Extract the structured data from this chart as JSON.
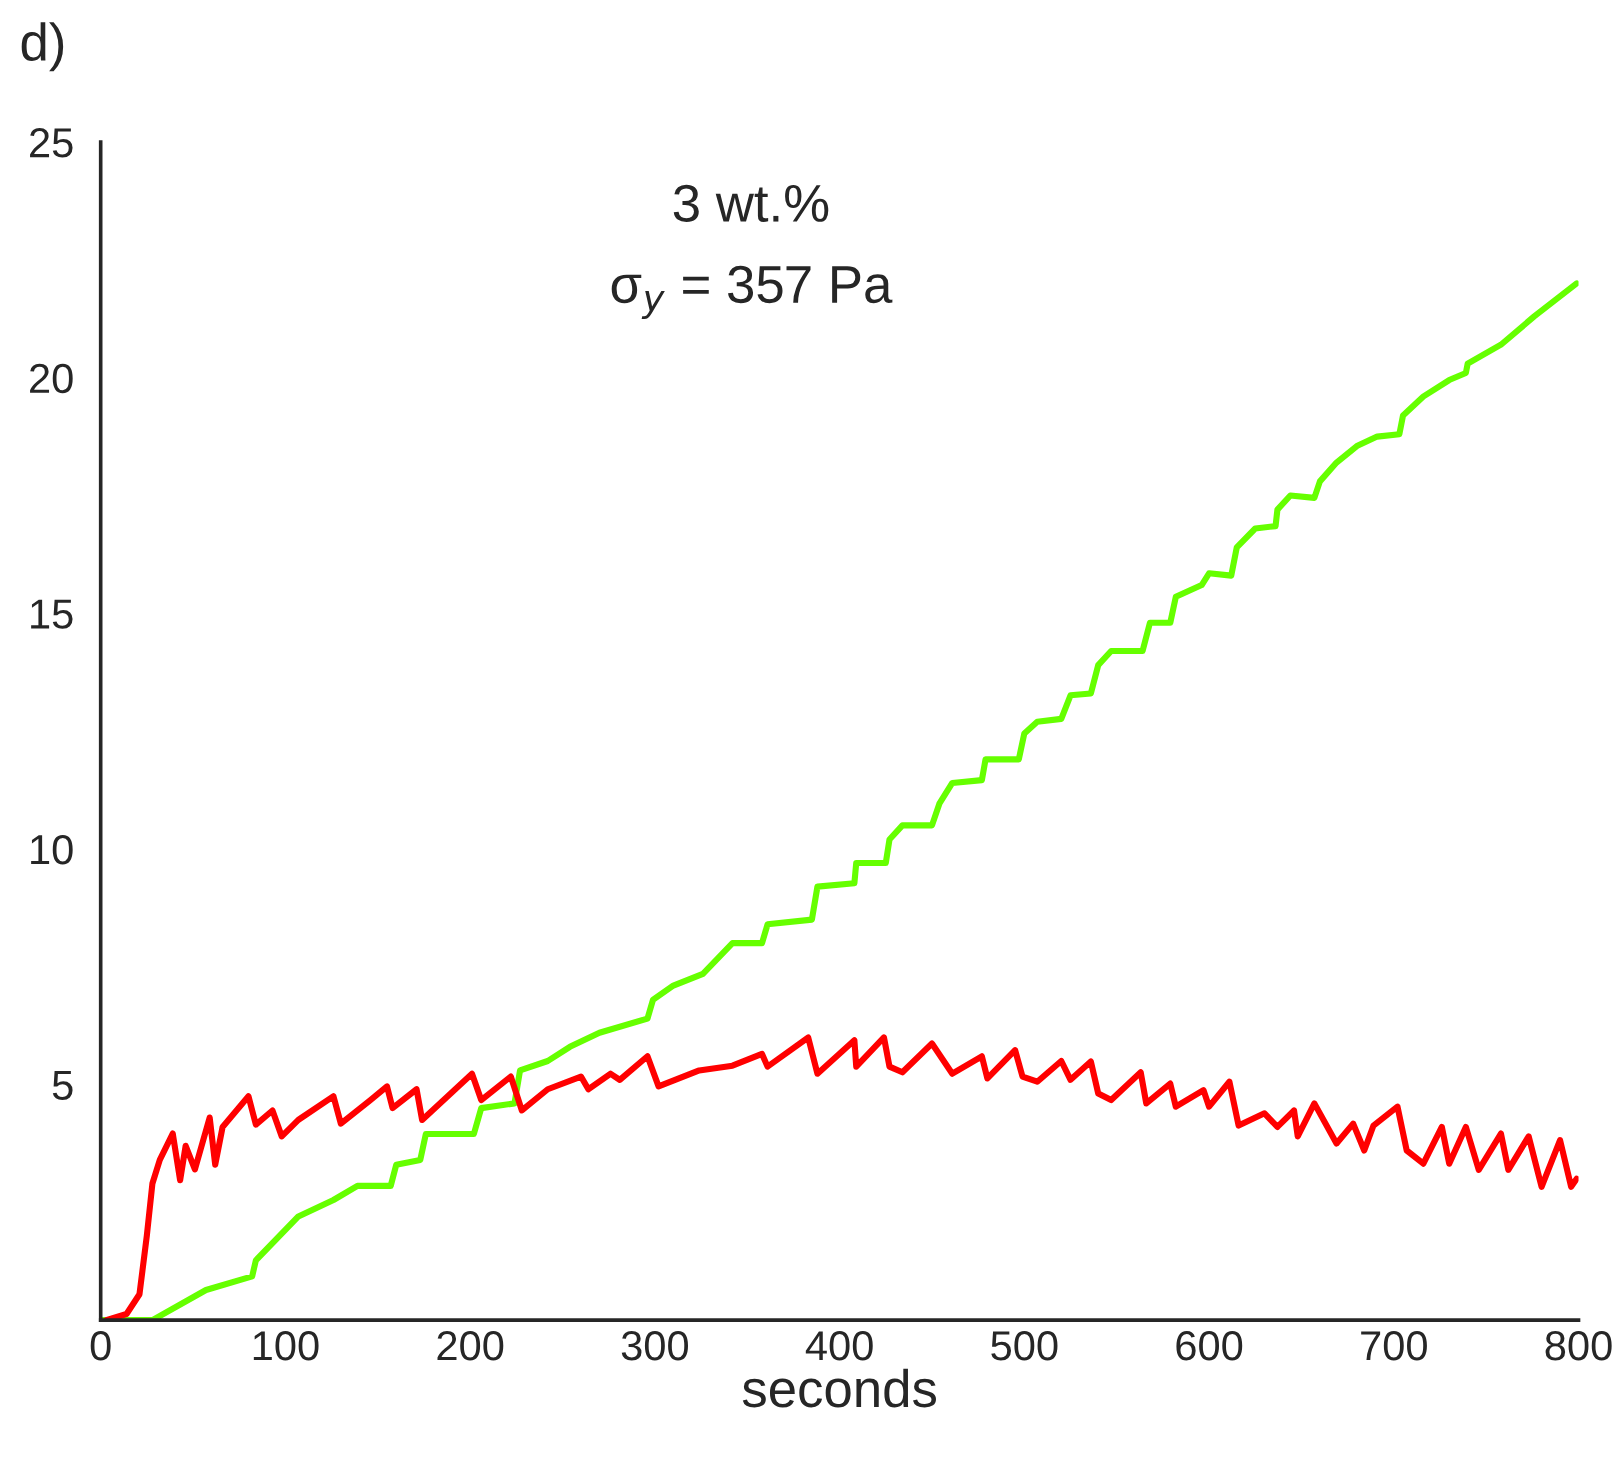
{
  "chart_data": {
    "type": "line",
    "title": "3 wt.%",
    "subtitle": "σ$_{y}$ = 357 Pa",
    "xlabel": "seconds",
    "annotations": [
      "d)"
    ],
    "xlim": [
      0,
      800
    ],
    "ylim": [
      0,
      25
    ],
    "xticks": [
      0,
      100,
      200,
      300,
      400,
      500,
      600,
      700,
      800
    ],
    "yticks": [
      5,
      10,
      15,
      20,
      25
    ],
    "grid": false,
    "legend": false,
    "line_style": "solid",
    "series": [
      {
        "color": "#66ff00",
        "x": [
          0,
          28,
          57,
          82,
          84,
          107,
          126,
          139,
          157,
          160,
          173,
          176,
          202,
          206,
          224,
          227,
          242,
          254,
          270,
          296,
          299,
          310,
          326,
          342,
          358,
          361,
          385,
          388,
          408,
          409,
          425,
          427,
          434,
          450,
          454,
          461,
          477,
          479,
          497,
          500,
          507,
          520,
          525,
          536,
          540,
          547,
          564,
          568,
          579,
          582,
          596,
          600,
          612,
          615,
          625,
          636,
          637,
          644,
          657,
          660,
          669,
          680,
          691,
          703,
          705,
          716,
          730,
          739,
          740,
          758,
          776,
          799
        ],
        "values": [
          0,
          0,
          0.64,
          0.93,
          1.27,
          2.2,
          2.55,
          2.85,
          2.85,
          3.3,
          3.4,
          3.95,
          3.95,
          4.5,
          4.6,
          5.3,
          5.5,
          5.8,
          6.1,
          6.4,
          6.8,
          7.1,
          7.35,
          8.0,
          8.0,
          8.4,
          8.5,
          9.2,
          9.27,
          9.7,
          9.7,
          10.2,
          10.5,
          10.5,
          10.96,
          11.4,
          11.46,
          11.9,
          11.9,
          12.45,
          12.7,
          12.76,
          13.26,
          13.3,
          13.9,
          14.2,
          14.2,
          14.8,
          14.8,
          15.35,
          15.6,
          15.85,
          15.8,
          16.4,
          16.8,
          16.85,
          17.2,
          17.5,
          17.45,
          17.8,
          18.2,
          18.55,
          18.75,
          18.8,
          19.2,
          19.6,
          19.95,
          20.1,
          20.3,
          20.7,
          21.3,
          22.0
        ]
      },
      {
        "color": "#ff0000",
        "x": [
          3,
          14,
          21,
          25,
          28,
          32,
          39,
          43,
          46,
          51,
          59,
          62,
          66,
          80,
          84,
          93,
          98,
          107,
          126,
          130,
          146,
          155,
          158,
          171,
          174,
          201,
          206,
          222,
          228,
          242,
          260,
          264,
          276,
          281,
          296,
          302,
          324,
          342,
          358,
          361,
          383,
          388,
          408,
          409,
          424,
          427,
          434,
          450,
          461,
          477,
          480,
          495,
          499,
          507,
          520,
          525,
          536,
          540,
          547,
          563,
          566,
          579,
          582,
          597,
          600,
          611,
          616,
          630,
          637,
          646,
          648,
          657,
          669,
          678,
          684,
          689,
          702,
          707,
          716,
          726,
          730,
          739,
          746,
          758,
          762,
          773,
          780,
          790,
          796,
          799
        ],
        "values": [
          0,
          0.13,
          0.55,
          1.8,
          2.9,
          3.4,
          3.96,
          2.97,
          3.7,
          3.2,
          4.3,
          3.3,
          4.1,
          4.75,
          4.15,
          4.45,
          3.9,
          4.25,
          4.75,
          4.17,
          4.67,
          4.96,
          4.5,
          4.9,
          4.25,
          5.23,
          4.67,
          5.17,
          4.45,
          4.9,
          5.17,
          4.9,
          5.23,
          5.1,
          5.6,
          4.96,
          5.3,
          5.4,
          5.65,
          5.38,
          6.0,
          5.23,
          5.94,
          5.38,
          6.0,
          5.38,
          5.26,
          5.87,
          5.23,
          5.6,
          5.13,
          5.73,
          5.17,
          5.06,
          5.5,
          5.1,
          5.49,
          4.81,
          4.67,
          5.26,
          4.6,
          5.02,
          4.53,
          4.88,
          4.53,
          5.06,
          4.13,
          4.39,
          4.1,
          4.45,
          3.9,
          4.6,
          3.75,
          4.17,
          3.6,
          4.13,
          4.53,
          3.6,
          3.32,
          4.1,
          3.32,
          4.1,
          3.19,
          3.96,
          3.19,
          3.9,
          2.83,
          3.82,
          2.83,
          3.0
        ]
      }
    ]
  }
}
